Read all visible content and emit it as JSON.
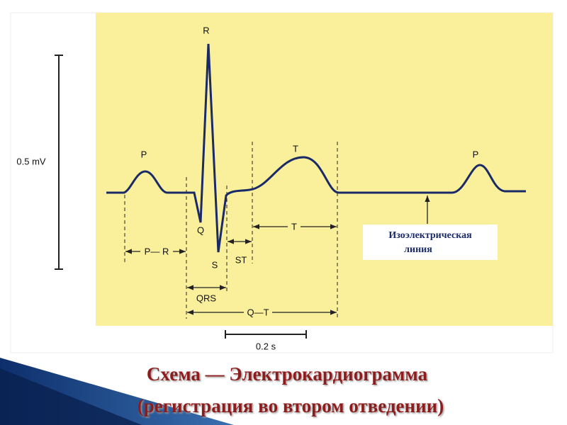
{
  "diagram": {
    "scale_label": "0.5 mV",
    "wave_labels": [
      "P",
      "R",
      "Q",
      "S",
      "T",
      "P"
    ],
    "interval_labels": [
      "P— R",
      "QRS",
      "ST",
      "T",
      "Q—T"
    ],
    "time_scale_label": "0.2 s",
    "isoelectric_label": [
      "Изоэлектрическая",
      "линия"
    ]
  },
  "title": [
    "Схема — Электрокардиограмма",
    "(регистрация во втором отведении)"
  ]
}
